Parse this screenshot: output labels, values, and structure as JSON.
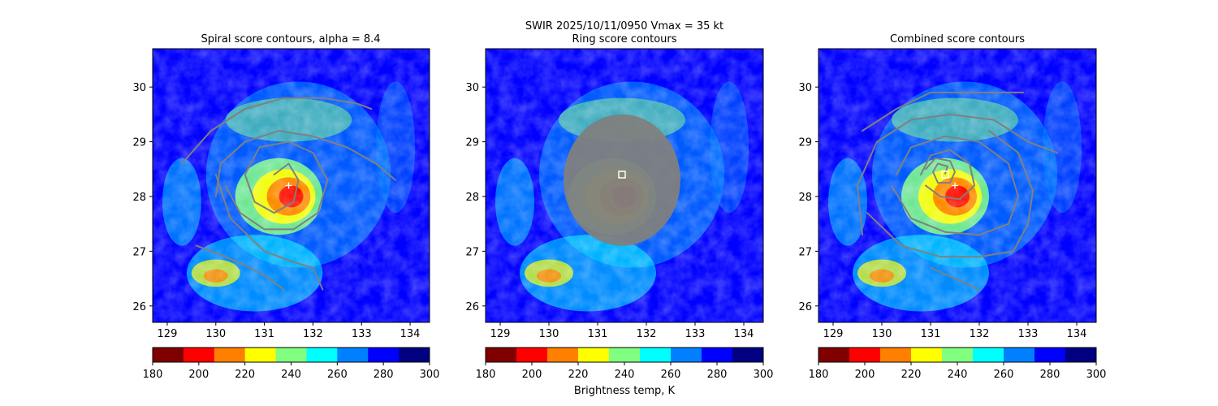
{
  "suptitle": "SWIR  2025/10/11/0950    Vmax = 35 kt",
  "colorbar_label": "Brightness temp, K",
  "colorscale": [
    "#800000",
    "#ff0000",
    "#ff8000",
    "#ffff00",
    "#80ff80",
    "#00ffff",
    "#0080ff",
    "#0000ff",
    "#000080"
  ],
  "contour_color": "#808080",
  "center_plus_color": "#ffffff",
  "center_square_color": "#ffffff",
  "chart_data": [
    {
      "type": "heatmap",
      "title": "Spiral score contours, alpha =  8.4",
      "xlim": [
        128.7,
        134.4
      ],
      "ylim": [
        25.7,
        30.7
      ],
      "xticks": [
        "129",
        "130",
        "131",
        "132",
        "133",
        "134"
      ],
      "yticks": [
        "26",
        "27",
        "28",
        "29",
        "30"
      ],
      "colorbar": {
        "range": [
          180,
          300
        ],
        "ticks": [
          "180",
          "200",
          "220",
          "240",
          "260",
          "280",
          "300"
        ]
      },
      "center_marker": {
        "shape": "plus",
        "x": 131.5,
        "y": 28.2
      },
      "contours": [
        [
          [
            129.3,
            28.6
          ],
          [
            129.9,
            29.2
          ],
          [
            130.6,
            29.6
          ],
          [
            131.4,
            29.8
          ],
          [
            132.2,
            29.8
          ],
          [
            132.9,
            29.7
          ],
          [
            133.2,
            29.6
          ]
        ],
        [
          [
            130.0,
            28.0
          ],
          [
            130.1,
            28.6
          ],
          [
            130.6,
            29.0
          ],
          [
            131.3,
            29.2
          ],
          [
            132.0,
            29.1
          ],
          [
            132.7,
            28.9
          ],
          [
            133.3,
            28.6
          ],
          [
            133.7,
            28.3
          ]
        ],
        [
          [
            131.2,
            28.4
          ],
          [
            131.5,
            28.6
          ],
          [
            131.7,
            28.3
          ],
          [
            131.6,
            27.9
          ],
          [
            131.2,
            27.7
          ],
          [
            130.8,
            27.9
          ],
          [
            130.6,
            28.4
          ],
          [
            130.9,
            28.9
          ],
          [
            131.5,
            29.0
          ],
          [
            132.0,
            28.8
          ],
          [
            132.3,
            28.3
          ],
          [
            132.1,
            27.7
          ],
          [
            131.6,
            27.4
          ],
          [
            131.0,
            27.4
          ],
          [
            130.5,
            27.7
          ],
          [
            130.2,
            28.2
          ]
        ],
        [
          [
            130.0,
            28.4
          ],
          [
            130.3,
            27.6
          ],
          [
            131.0,
            27.0
          ],
          [
            131.6,
            26.8
          ],
          [
            132.0,
            26.7
          ],
          [
            132.2,
            26.3
          ]
        ],
        [
          [
            129.6,
            27.1
          ],
          [
            130.2,
            26.9
          ],
          [
            130.7,
            26.7
          ],
          [
            131.1,
            26.5
          ],
          [
            131.4,
            26.3
          ]
        ]
      ]
    },
    {
      "type": "heatmap",
      "title": "Ring score contours",
      "xlim": [
        128.7,
        134.4
      ],
      "ylim": [
        25.7,
        30.7
      ],
      "xticks": [
        "129",
        "130",
        "131",
        "132",
        "133",
        "134"
      ],
      "yticks": [
        "26",
        "27",
        "28",
        "29",
        "30"
      ],
      "colorbar": {
        "range": [
          180,
          300
        ],
        "ticks": [
          "180",
          "200",
          "220",
          "240",
          "260",
          "280",
          "300"
        ]
      },
      "center_marker": {
        "shape": "square",
        "x": 131.5,
        "y": 28.4
      },
      "filled_disk": {
        "x": 131.5,
        "y": 28.3,
        "radius_deg": 1.2
      },
      "contours": []
    },
    {
      "type": "heatmap",
      "title": "Combined score contours",
      "xlim": [
        128.7,
        134.4
      ],
      "ylim": [
        25.7,
        30.7
      ],
      "xticks": [
        "129",
        "130",
        "131",
        "132",
        "133",
        "134"
      ],
      "yticks": [
        "26",
        "27",
        "28",
        "29",
        "30"
      ],
      "colorbar": {
        "range": [
          180,
          300
        ],
        "ticks": [
          "180",
          "200",
          "220",
          "240",
          "260",
          "280",
          "300"
        ]
      },
      "center_marker": {
        "shape": "square",
        "x": 131.3,
        "y": 28.4
      },
      "second_marker": {
        "shape": "plus",
        "x": 131.5,
        "y": 28.2
      },
      "contours": [
        [
          [
            129.6,
            29.2
          ],
          [
            130.3,
            29.6
          ],
          [
            131.0,
            29.9
          ],
          [
            131.8,
            29.9
          ],
          [
            132.5,
            29.9
          ],
          [
            132.9,
            29.9
          ]
        ],
        [
          [
            131.3,
            28.42
          ],
          [
            131.35,
            28.55
          ],
          [
            131.15,
            28.6
          ],
          [
            131.05,
            28.45
          ],
          [
            131.15,
            28.25
          ],
          [
            131.4,
            28.25
          ],
          [
            131.5,
            28.45
          ],
          [
            131.4,
            28.65
          ],
          [
            131.1,
            28.7
          ],
          [
            130.9,
            28.5
          ]
        ],
        [
          [
            130.8,
            28.4
          ],
          [
            131.0,
            28.75
          ],
          [
            131.4,
            28.85
          ],
          [
            131.8,
            28.6
          ],
          [
            131.9,
            28.2
          ],
          [
            131.6,
            27.95
          ],
          [
            131.2,
            28.0
          ],
          [
            130.9,
            28.2
          ]
        ],
        [
          [
            129.6,
            27.3
          ],
          [
            129.5,
            28.2
          ],
          [
            129.9,
            29.0
          ],
          [
            130.6,
            29.4
          ],
          [
            131.4,
            29.5
          ],
          [
            132.3,
            29.4
          ],
          [
            133.0,
            29.0
          ],
          [
            133.6,
            28.8
          ]
        ],
        [
          [
            130.2,
            28.2
          ],
          [
            130.6,
            27.6
          ],
          [
            131.3,
            27.35
          ],
          [
            132.0,
            27.3
          ],
          [
            132.6,
            27.5
          ],
          [
            132.8,
            28.0
          ],
          [
            132.6,
            28.6
          ],
          [
            132.0,
            29.0
          ],
          [
            131.3,
            29.1
          ],
          [
            130.6,
            28.9
          ],
          [
            130.3,
            28.4
          ]
        ],
        [
          [
            129.7,
            27.7
          ],
          [
            130.4,
            27.1
          ],
          [
            131.2,
            26.9
          ],
          [
            132.0,
            26.9
          ],
          [
            132.7,
            27.0
          ],
          [
            133.0,
            27.5
          ],
          [
            133.1,
            28.1
          ],
          [
            132.8,
            28.8
          ],
          [
            132.2,
            29.2
          ]
        ],
        [
          [
            131.0,
            26.7
          ],
          [
            131.5,
            26.5
          ],
          [
            132.0,
            26.3
          ]
        ]
      ]
    }
  ]
}
